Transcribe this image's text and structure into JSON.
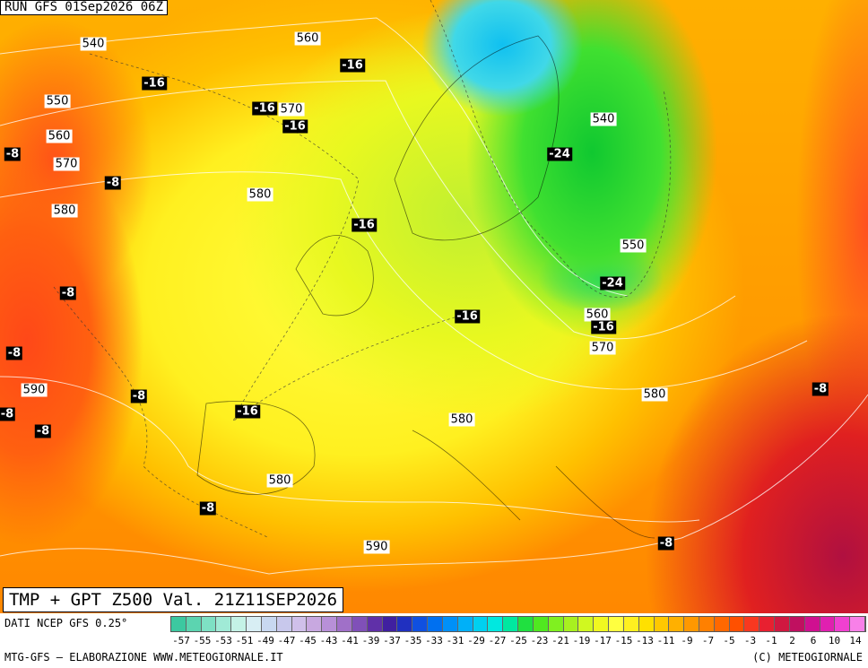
{
  "header": {
    "run": "RUN GFS 01Sep2026 06Z"
  },
  "map": {
    "height_labels": [
      540,
      560,
      550,
      570,
      560,
      570,
      580,
      580,
      540,
      550,
      560,
      570,
      580,
      590,
      580,
      580,
      590
    ],
    "temperature_labels": [
      -16,
      -16,
      -16,
      -16,
      -8,
      -8,
      -24,
      -16,
      -8,
      -24,
      -16,
      -16,
      -8,
      -8,
      -8,
      -8,
      -16,
      -8,
      -8,
      -8
    ]
  },
  "footer": {
    "title": "TMP + GPT Z500 Val. 21Z11SEP2026",
    "source": "DATI NCEP GFS 0.25°",
    "credit": "MTG-GFS — ELABORAZIONE WWW.METEOGIORNALE.IT",
    "copyright": "(C) METEOGIORNALE"
  },
  "legend": {
    "labels": [
      -57,
      -55,
      -53,
      -51,
      -49,
      -47,
      -45,
      -43,
      -41,
      -39,
      -37,
      -35,
      -33,
      -31,
      -29,
      -27,
      -25,
      -23,
      -21,
      -19,
      -17,
      -15,
      -13,
      -11,
      -9,
      -7,
      -5,
      -3,
      -1,
      2,
      6,
      10,
      14
    ],
    "colors": [
      "#3cc8a0",
      "#5cd4b0",
      "#7ee0c4",
      "#a0ead6",
      "#c4f2e6",
      "#d8eef4",
      "#c8d8f0",
      "#c8c8ec",
      "#d0c0ea",
      "#c8a8e0",
      "#b890d8",
      "#a070c8",
      "#8050b8",
      "#6030a8",
      "#4020a0",
      "#2030c0",
      "#1050e0",
      "#0070f0",
      "#0090f8",
      "#00b0f8",
      "#00d0f0",
      "#00e8e0",
      "#00e8a0",
      "#20e040",
      "#50e820",
      "#80f020",
      "#a8f020",
      "#d0f820",
      "#f0f820",
      "#ffff40",
      "#fff020",
      "#ffe000",
      "#ffc800",
      "#ffb000",
      "#ff9800",
      "#ff8000",
      "#ff6800",
      "#ff5000",
      "#f83820",
      "#e82030",
      "#d01840",
      "#c01060",
      "#d01090",
      "#e020b0",
      "#f040d0",
      "#f880e8"
    ]
  }
}
